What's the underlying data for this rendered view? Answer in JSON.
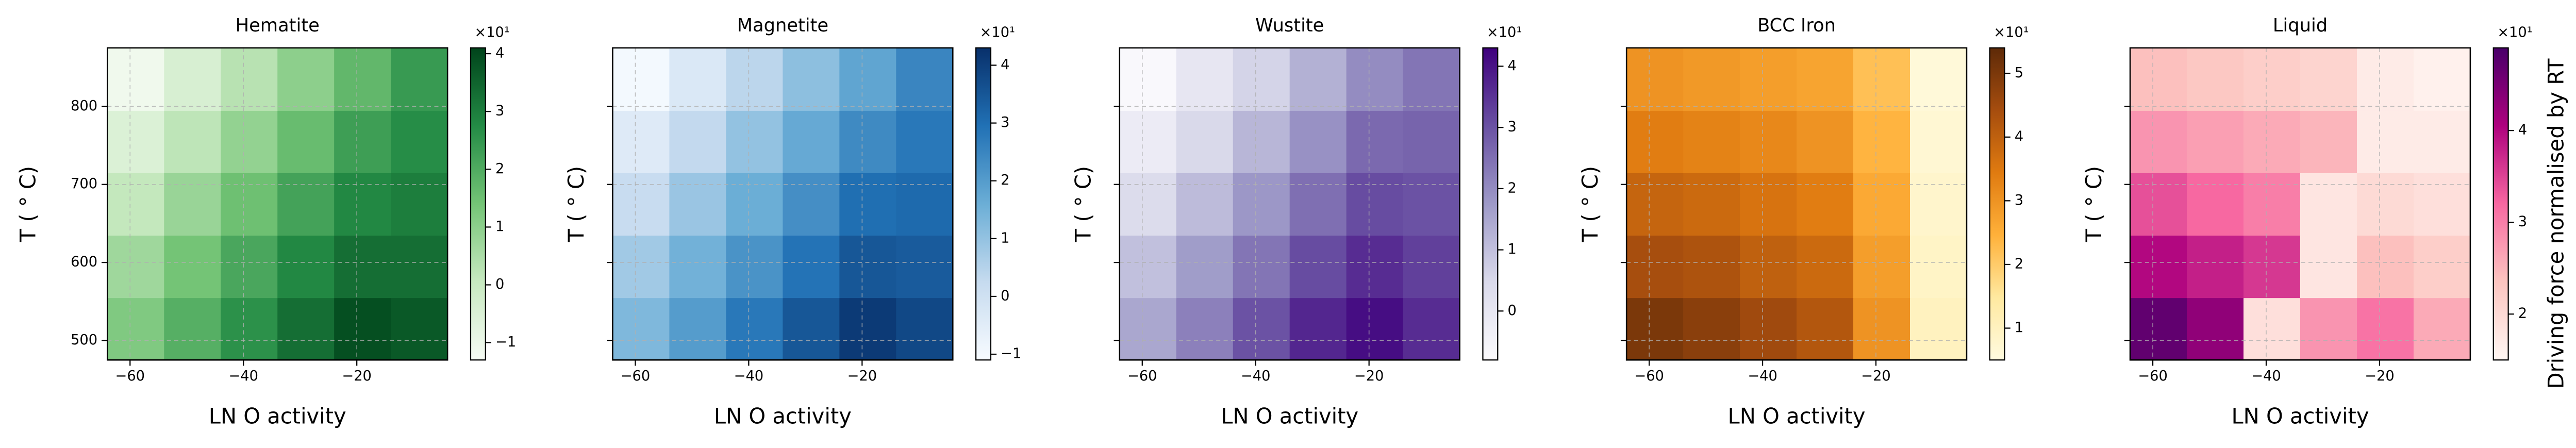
{
  "chart_data": [
    {
      "type": "heatmap",
      "title": "Hematite",
      "xlabel": "LN O activity",
      "ylabel": "T ( ° C)",
      "x": [
        -59,
        -49,
        -39,
        -29,
        -19,
        -9
      ],
      "y": [
        515,
        595,
        675,
        755,
        835
      ],
      "values": [
        [
          1.2,
          1.9,
          2.6,
          3.3,
          3.9,
          3.7
        ],
        [
          0.7,
          1.4,
          2.1,
          2.8,
          3.3,
          3.3
        ],
        [
          0.1,
          0.8,
          1.5,
          2.2,
          2.8,
          3.0
        ],
        [
          -0.5,
          0.2,
          0.9,
          1.6,
          2.3,
          2.7
        ],
        [
          -1.1,
          -0.4,
          0.3,
          1.0,
          1.7,
          2.4
        ]
      ],
      "xlim": [
        -64,
        -4
      ],
      "xticks": [
        {
          "value": -60,
          "label": "−60"
        },
        {
          "value": -40,
          "label": "−40"
        },
        {
          "value": -20,
          "label": "−20"
        }
      ],
      "ylim": [
        475,
        875
      ],
      "yticks": [
        500,
        600,
        700,
        800
      ],
      "show_ytick_labels": true,
      "grid": true,
      "colormap": [
        "#f7fcf5",
        "#c7e9c0",
        "#74c476",
        "#238b45",
        "#00441b"
      ],
      "clim": [
        -1.3,
        4.1
      ],
      "cticks": [
        {
          "value": -1,
          "label": "−1"
        },
        0,
        1,
        2,
        3,
        4
      ],
      "colorbar_offset": "×10¹"
    },
    {
      "type": "heatmap",
      "title": "Magnetite",
      "xlabel": "LN O activity",
      "ylabel": "T ( ° C)",
      "x": [
        -59,
        -49,
        -39,
        -29,
        -19,
        -9
      ],
      "y": [
        515,
        595,
        675,
        755,
        835
      ],
      "values": [
        [
          1.3,
          2.0,
          2.8,
          3.5,
          4.1,
          3.8
        ],
        [
          0.8,
          1.5,
          2.2,
          2.9,
          3.5,
          3.4
        ],
        [
          0.2,
          0.9,
          1.6,
          2.3,
          3.0,
          3.1
        ],
        [
          -0.4,
          0.3,
          1.0,
          1.7,
          2.4,
          2.8
        ],
        [
          -1.0,
          -0.3,
          0.4,
          1.1,
          1.8,
          2.5
        ]
      ],
      "xlim": [
        -64,
        -4
      ],
      "xticks": [
        {
          "value": -60,
          "label": "−60"
        },
        {
          "value": -40,
          "label": "−40"
        },
        {
          "value": -20,
          "label": "−20"
        }
      ],
      "ylim": [
        475,
        875
      ],
      "yticks": [
        500,
        600,
        700,
        800
      ],
      "show_ytick_labels": false,
      "grid": true,
      "colormap": [
        "#f7fbff",
        "#c6dbef",
        "#6baed6",
        "#2171b5",
        "#08306b"
      ],
      "clim": [
        -1.1,
        4.3
      ],
      "cticks": [
        {
          "value": -1,
          "label": "−1"
        },
        0,
        1,
        2,
        3,
        4
      ],
      "colorbar_offset": "×10¹"
    },
    {
      "type": "heatmap",
      "title": "Wustite",
      "xlabel": "LN O activity",
      "ylabel": "T ( ° C)",
      "x": [
        -59,
        -49,
        -39,
        -29,
        -19,
        -9
      ],
      "y": [
        515,
        595,
        675,
        755,
        835
      ],
      "values": [
        [
          1.5,
          2.2,
          3.0,
          3.7,
          4.1,
          3.6
        ],
        [
          1.0,
          1.7,
          2.4,
          3.1,
          3.6,
          3.3
        ],
        [
          0.4,
          1.1,
          1.8,
          2.5,
          3.1,
          3.0
        ],
        [
          -0.2,
          0.5,
          1.2,
          1.9,
          2.6,
          2.7
        ],
        [
          -0.7,
          0.0,
          0.6,
          1.3,
          2.0,
          2.4
        ]
      ],
      "xlim": [
        -64,
        -4
      ],
      "xticks": [
        {
          "value": -60,
          "label": "−60"
        },
        {
          "value": -40,
          "label": "−40"
        },
        {
          "value": -20,
          "label": "−20"
        }
      ],
      "ylim": [
        475,
        875
      ],
      "yticks": [
        500,
        600,
        700,
        800
      ],
      "show_ytick_labels": false,
      "grid": true,
      "colormap": [
        "#fcfbfd",
        "#dadaeb",
        "#9e9ac8",
        "#6a51a3",
        "#3f007d"
      ],
      "clim": [
        -0.8,
        4.3
      ],
      "cticks": [
        0,
        1,
        2,
        3,
        4
      ],
      "colorbar_offset": "×10¹"
    },
    {
      "type": "heatmap",
      "title": "BCC Iron",
      "xlabel": "LN O activity",
      "ylabel": "T ( ° C)",
      "x": [
        -59,
        -49,
        -39,
        -29,
        -19,
        -9
      ],
      "y": [
        515,
        595,
        675,
        755,
        835
      ],
      "values": [
        [
          5.0,
          4.8,
          4.5,
          4.2,
          3.0,
          1.0
        ],
        [
          4.4,
          4.3,
          4.0,
          3.8,
          2.8,
          0.9
        ],
        [
          3.9,
          3.8,
          3.6,
          3.4,
          2.6,
          0.8
        ],
        [
          3.4,
          3.3,
          3.2,
          3.0,
          2.4,
          0.7
        ],
        [
          3.0,
          2.9,
          2.8,
          2.7,
          2.2,
          0.6
        ]
      ],
      "xlim": [
        -64,
        -4
      ],
      "xticks": [
        {
          "value": -60,
          "label": "−60"
        },
        {
          "value": -40,
          "label": "−40"
        },
        {
          "value": -20,
          "label": "−20"
        }
      ],
      "ylim": [
        475,
        875
      ],
      "yticks": [
        500,
        600,
        700,
        800
      ],
      "show_ytick_labels": false,
      "grid": true,
      "colormap": [
        "#fffbe0",
        "#ffe9a0",
        "#ffb13a",
        "#e07b10",
        "#a64d0e",
        "#5e2a08"
      ],
      "clim": [
        0.5,
        5.4
      ],
      "cticks": [
        1,
        2,
        3,
        4,
        5
      ],
      "colorbar_offset": "×10¹"
    },
    {
      "type": "heatmap",
      "title": "Liquid",
      "xlabel": "LN O activity",
      "ylabel": "T ( ° C)",
      "x": [
        -59,
        -49,
        -39,
        -29,
        -19,
        -9
      ],
      "y": [
        515,
        595,
        675,
        755,
        835
      ],
      "values": [
        [
          4.7,
          4.3,
          1.9,
          2.8,
          3.1,
          2.6
        ],
        [
          4.0,
          3.8,
          3.6,
          1.8,
          2.4,
          2.2
        ],
        [
          3.4,
          3.2,
          3.0,
          1.8,
          2.0,
          1.9
        ],
        [
          2.8,
          2.7,
          2.6,
          2.5,
          1.7,
          1.7
        ],
        [
          2.4,
          2.3,
          2.2,
          2.1,
          1.7,
          1.6
        ]
      ],
      "xlim": [
        -64,
        -4
      ],
      "xticks": [
        {
          "value": -60,
          "label": "−60"
        },
        {
          "value": -40,
          "label": "−40"
        },
        {
          "value": -20,
          "label": "−20"
        }
      ],
      "ylim": [
        475,
        875
      ],
      "yticks": [
        500,
        600,
        700,
        800
      ],
      "show_ytick_labels": false,
      "grid": true,
      "colormap": [
        "#fff7f3",
        "#fcc5c0",
        "#f768a1",
        "#ae017e",
        "#49006a"
      ],
      "clim": [
        1.5,
        4.9
      ],
      "cticks": [
        2,
        3,
        4
      ],
      "colorbar_offset": "×10¹",
      "colorbar_label": "Driving force normalised by RT"
    }
  ]
}
